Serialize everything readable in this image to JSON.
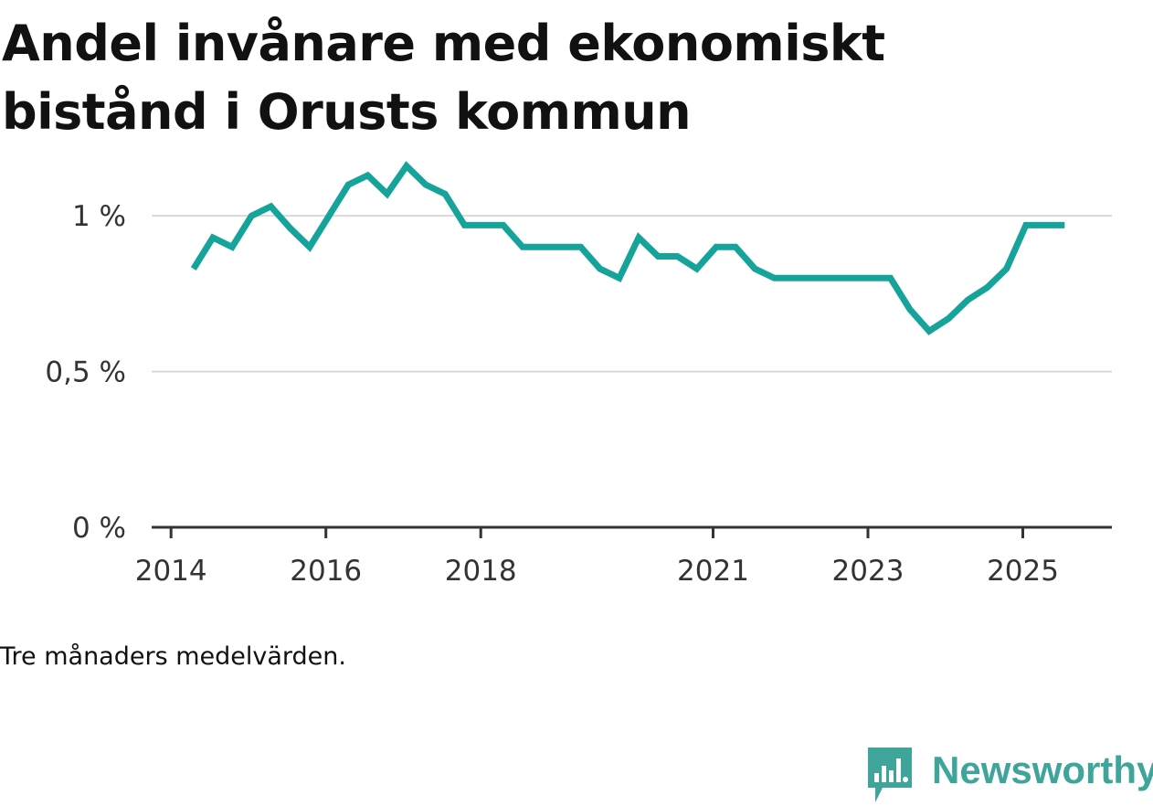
{
  "title": "Andel invånare med ekonomiskt bistånd i Orusts kommun",
  "caption": "Tre månaders medelvärden.",
  "brand": {
    "name": "Newsworthy",
    "icon": "bar-chart-speech-icon",
    "color": "#3fa49a"
  },
  "chart_data": {
    "type": "line",
    "title": "Andel invånare med ekonomiskt bistånd i Orusts kommun",
    "xlabel": "",
    "ylabel": "",
    "ylim": [
      0,
      1.2
    ],
    "yticks": [
      {
        "value": 0,
        "label": "0 %"
      },
      {
        "value": 0.5,
        "label": "0,5 %"
      },
      {
        "value": 1,
        "label": "1 %"
      }
    ],
    "xticks": [
      {
        "value": 2014.0,
        "label": "2014"
      },
      {
        "value": 2016.0,
        "label": "2016"
      },
      {
        "value": 2018.0,
        "label": "2018"
      },
      {
        "value": 2021.0,
        "label": "2021"
      },
      {
        "value": 2023.0,
        "label": "2023"
      },
      {
        "value": 2025.0,
        "label": "2025"
      }
    ],
    "xlim": [
      2013.75,
      2026.15
    ],
    "grid": true,
    "line_color": "#15a39a",
    "series": [
      {
        "name": "Andel invånare med ekonomiskt bistånd",
        "x": [
          2014.29,
          2014.54,
          2014.79,
          2015.04,
          2015.29,
          2015.54,
          2015.79,
          2016.04,
          2016.29,
          2016.54,
          2016.79,
          2017.04,
          2017.29,
          2017.54,
          2017.79,
          2018.04,
          2018.29,
          2018.54,
          2018.79,
          2019.04,
          2019.29,
          2019.54,
          2019.79,
          2020.04,
          2020.29,
          2020.54,
          2020.79,
          2021.04,
          2021.29,
          2021.54,
          2021.79,
          2022.04,
          2022.29,
          2022.54,
          2022.79,
          2023.04,
          2023.29,
          2023.54,
          2023.79,
          2024.04,
          2024.29,
          2024.54,
          2024.79,
          2025.04,
          2025.29,
          2025.54
        ],
        "values": [
          0.83,
          0.93,
          0.9,
          1.0,
          1.03,
          0.96,
          0.9,
          1.0,
          1.1,
          1.13,
          1.07,
          1.16,
          1.1,
          1.07,
          0.97,
          0.97,
          0.97,
          0.9,
          0.9,
          0.9,
          0.9,
          0.83,
          0.8,
          0.93,
          0.87,
          0.87,
          0.83,
          0.9,
          0.9,
          0.83,
          0.8,
          0.8,
          0.8,
          0.8,
          0.8,
          0.8,
          0.8,
          0.7,
          0.63,
          0.67,
          0.73,
          0.77,
          0.83,
          0.97,
          0.97,
          0.97
        ]
      }
    ]
  }
}
